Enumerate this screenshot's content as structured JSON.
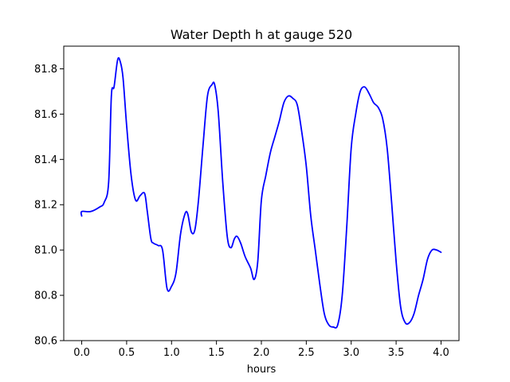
{
  "chart_data": {
    "type": "line",
    "title": "Water Depth h at gauge 520",
    "xlabel": "hours",
    "ylabel": "",
    "xlim": [
      -0.2,
      4.2
    ],
    "ylim": [
      80.6,
      81.9
    ],
    "xticks": [
      0.0,
      0.5,
      1.0,
      1.5,
      2.0,
      2.5,
      3.0,
      3.5,
      4.0
    ],
    "xtick_labels": [
      "0.0",
      "0.5",
      "1.0",
      "1.5",
      "2.0",
      "2.5",
      "3.0",
      "3.5",
      "4.0"
    ],
    "yticks": [
      80.6,
      80.8,
      81.0,
      81.2,
      81.4,
      81.6,
      81.8
    ],
    "ytick_labels": [
      "80.6",
      "80.8",
      "81.0",
      "81.2",
      "81.4",
      "81.6",
      "81.8"
    ],
    "grid": false,
    "series": [
      {
        "color": "#0000ff",
        "x": [
          0.0,
          0.0,
          0.1,
          0.2,
          0.25,
          0.3,
          0.33,
          0.36,
          0.4,
          0.43,
          0.46,
          0.5,
          0.55,
          0.6,
          0.65,
          0.7,
          0.73,
          0.77,
          0.8,
          0.85,
          0.9,
          0.95,
          1.0,
          1.05,
          1.1,
          1.15,
          1.18,
          1.22,
          1.26,
          1.3,
          1.35,
          1.4,
          1.45,
          1.48,
          1.52,
          1.57,
          1.62,
          1.66,
          1.7,
          1.73,
          1.77,
          1.82,
          1.88,
          1.92,
          1.96,
          2.0,
          2.05,
          2.1,
          2.15,
          2.2,
          2.25,
          2.3,
          2.35,
          2.4,
          2.45,
          2.5,
          2.55,
          2.6,
          2.65,
          2.7,
          2.75,
          2.8,
          2.85,
          2.9,
          2.95,
          3.0,
          3.05,
          3.1,
          3.15,
          3.2,
          3.25,
          3.3,
          3.35,
          3.4,
          3.45,
          3.5,
          3.55,
          3.6,
          3.65,
          3.7,
          3.75,
          3.8,
          3.85,
          3.9,
          3.95,
          4.0
        ],
        "y": [
          81.15,
          81.17,
          81.17,
          81.19,
          81.21,
          81.3,
          81.68,
          81.72,
          81.84,
          81.83,
          81.76,
          81.55,
          81.33,
          81.22,
          81.24,
          81.25,
          81.17,
          81.05,
          81.03,
          81.02,
          81.0,
          80.83,
          80.84,
          80.9,
          81.07,
          81.16,
          81.16,
          81.08,
          81.09,
          81.22,
          81.46,
          81.68,
          81.73,
          81.73,
          81.61,
          81.3,
          81.06,
          81.01,
          81.05,
          81.06,
          81.03,
          80.97,
          80.92,
          80.87,
          80.95,
          81.22,
          81.33,
          81.43,
          81.5,
          81.57,
          81.65,
          81.68,
          81.67,
          81.64,
          81.52,
          81.37,
          81.15,
          81.0,
          80.85,
          80.72,
          80.67,
          80.66,
          80.67,
          80.8,
          81.1,
          81.45,
          81.6,
          81.7,
          81.72,
          81.69,
          81.65,
          81.63,
          81.58,
          81.45,
          81.21,
          80.95,
          80.75,
          80.68,
          80.68,
          80.72,
          80.8,
          80.87,
          80.96,
          81.0,
          81.0,
          80.99
        ]
      }
    ]
  }
}
